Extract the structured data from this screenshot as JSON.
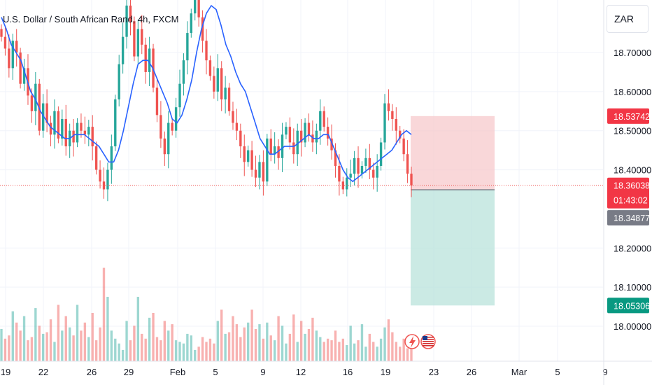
{
  "header": {
    "title": "U.S. Dollar / South African Rand, 4h, FXCM"
  },
  "price_axis": {
    "currency": "ZAR"
  },
  "badges": {
    "stop_loss": "18.53742",
    "last_price": "18.36038",
    "countdown": "01:43:02",
    "entry": "18.34877",
    "take_profit": "18.05306"
  },
  "colors": {
    "up": "#26a69a",
    "down": "#ef5350",
    "ma": "#2962ff",
    "stop_zone": "#f7c9cc",
    "target_zone": "#b9e3db",
    "grid": "#f0f3fa"
  },
  "icons": [
    "lightning-event-icon",
    "us-flag-event-icon"
  ],
  "chart_data": {
    "type": "candlestick",
    "title": "U.S. Dollar / South African Rand, 4h, FXCM",
    "symbol": "USDZAR",
    "timeframe": "4h",
    "source": "FXCM",
    "y_ticks": [
      "18.70000",
      "18.60000",
      "18.50000",
      "18.40000",
      "18.20000",
      "18.10000",
      "18.00000"
    ],
    "x_ticks": [
      "19",
      "22",
      "26",
      "29",
      "Feb",
      "5",
      "9",
      "12",
      "16",
      "19",
      "23",
      "26",
      "Mar",
      "5",
      "9"
    ],
    "ylim": [
      17.95,
      18.8
    ],
    "grid": true,
    "price_series": [
      18.74,
      18.71,
      18.66,
      18.73,
      18.7,
      18.62,
      18.66,
      18.59,
      18.55,
      18.62,
      18.5,
      18.57,
      18.52,
      18.49,
      18.55,
      18.48,
      18.53,
      18.46,
      18.5,
      18.47,
      18.52,
      18.5,
      18.49,
      18.51,
      18.46,
      18.4,
      18.37,
      18.35,
      18.4,
      18.46,
      18.58,
      18.67,
      18.74,
      18.82,
      18.78,
      18.69,
      18.76,
      18.72,
      18.65,
      18.71,
      18.61,
      18.54,
      18.48,
      18.44,
      18.52,
      18.5,
      18.56,
      18.62,
      18.68,
      18.75,
      18.8,
      18.84,
      18.79,
      18.73,
      18.68,
      18.64,
      18.6,
      18.66,
      18.58,
      18.61,
      18.55,
      18.52,
      18.5,
      18.46,
      18.42,
      18.45,
      18.4,
      18.38,
      18.42,
      18.37,
      18.48,
      18.44,
      18.46,
      18.43,
      18.49,
      18.51,
      18.47,
      18.44,
      18.5,
      18.47,
      18.52,
      18.49,
      18.47,
      18.5,
      18.55,
      18.51,
      18.48,
      18.45,
      18.41,
      18.37,
      18.35,
      18.38,
      18.39,
      18.43,
      18.39,
      18.41,
      18.43,
      18.4,
      18.38,
      18.41,
      18.47,
      18.57,
      18.55,
      18.53,
      18.5,
      18.48,
      18.44,
      18.39,
      18.36
    ],
    "ma_series": [
      18.79,
      18.76,
      18.72,
      18.7,
      18.68,
      18.64,
      18.6,
      18.58,
      18.55,
      18.53,
      18.51,
      18.5,
      18.49,
      18.48,
      18.48,
      18.49,
      18.49,
      18.49,
      18.48,
      18.47,
      18.46,
      18.44,
      18.42,
      18.42,
      18.45,
      18.5,
      18.56,
      18.62,
      18.67,
      18.68,
      18.68,
      18.66,
      18.63,
      18.6,
      18.57,
      18.53,
      18.52,
      18.54,
      18.58,
      18.63,
      18.7,
      18.76,
      18.8,
      18.82,
      18.81,
      18.77,
      18.72,
      18.69,
      18.65,
      18.62,
      18.6,
      18.56,
      18.52,
      18.48,
      18.46,
      18.44,
      18.44,
      18.45,
      18.46,
      18.46,
      18.46,
      18.47,
      18.48,
      18.49,
      18.48,
      18.48,
      18.49,
      18.49,
      18.46,
      18.43,
      18.4,
      18.38,
      18.37,
      18.38,
      18.39,
      18.4,
      18.41,
      18.42,
      18.43,
      18.44,
      18.45,
      18.47,
      18.49,
      18.5,
      18.49
    ],
    "volume_series": [
      20,
      14,
      16,
      31,
      24,
      19,
      28,
      13,
      15,
      33,
      22,
      17,
      18,
      26,
      12,
      35,
      19,
      28,
      21,
      16,
      35,
      19,
      24,
      15,
      30,
      13,
      21,
      58,
      40,
      19,
      14,
      11,
      7,
      25,
      13,
      22,
      40,
      17,
      14,
      27,
      30,
      15,
      13,
      25,
      19,
      23,
      13,
      12,
      11,
      17,
      16,
      7,
      9,
      15,
      12,
      14,
      11,
      25,
      32,
      17,
      18,
      28,
      23,
      15,
      21,
      24,
      32,
      20,
      23,
      14,
      24,
      16,
      13,
      28,
      22,
      11,
      17,
      29,
      12,
      25,
      17,
      20,
      27,
      19,
      15,
      12,
      14,
      13,
      19,
      12,
      14,
      10,
      22,
      11,
      13,
      23,
      9,
      17,
      12,
      9,
      14,
      21,
      26,
      18,
      12,
      9,
      14,
      8,
      11
    ],
    "position": {
      "type": "short",
      "entry": 18.34877,
      "stop_loss": 18.53742,
      "take_profit": 18.05306,
      "last_price": 18.36038
    }
  }
}
